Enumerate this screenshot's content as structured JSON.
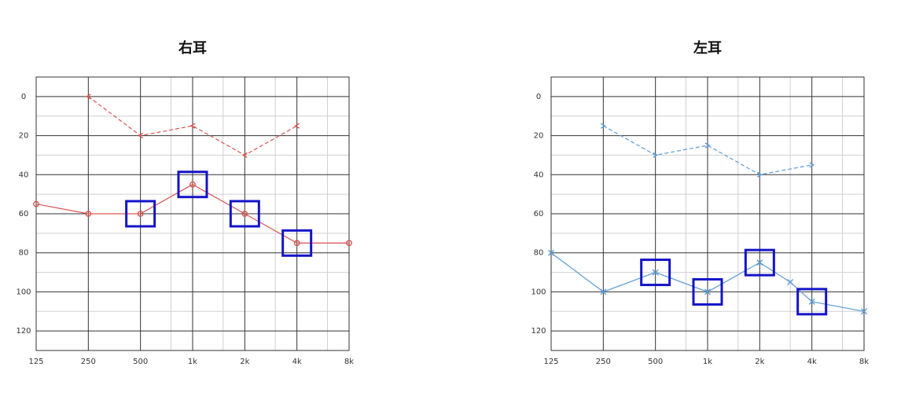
{
  "chart_data": [
    {
      "type": "line",
      "title": "右耳",
      "xscale": "log",
      "xlim": [
        125,
        8000
      ],
      "ylim": [
        -10,
        130
      ],
      "y_inverted": true,
      "grid": true,
      "xticks": [
        125,
        250,
        500,
        {
          "value": 1000,
          "label": "1k"
        },
        {
          "value": 2000,
          "label": "2k"
        },
        {
          "value": 4000,
          "label": "4k"
        },
        {
          "value": 8000,
          "label": "8k"
        }
      ],
      "xminor_ticks": [
        750,
        1500,
        3000,
        6000
      ],
      "yticks": [
        0,
        20,
        40,
        60,
        80,
        100,
        120
      ],
      "yminor_ticks": [
        10,
        30,
        50,
        70,
        90,
        110
      ],
      "series": [
        {
          "color": "#d9534f",
          "dash": false,
          "marker": "o",
          "x": [
            125,
            250,
            500,
            1000,
            2000,
            4000,
            8000
          ],
          "values": [
            55,
            60,
            60,
            45,
            60,
            75,
            75
          ]
        },
        {
          "color": "#d9534f",
          "dash": true,
          "marker": "<",
          "x": [
            250,
            500,
            1000,
            2000,
            4000
          ],
          "values": [
            0,
            20,
            15,
            30,
            15
          ]
        }
      ],
      "highlights": [
        500,
        1000,
        2000,
        4000
      ],
      "highlight_color": "#1414c8"
    },
    {
      "type": "line",
      "title": "左耳",
      "xscale": "log",
      "xlim": [
        125,
        8000
      ],
      "ylim": [
        -10,
        130
      ],
      "y_inverted": true,
      "grid": true,
      "xticks": [
        125,
        250,
        500,
        {
          "value": 1000,
          "label": "1k"
        },
        {
          "value": 2000,
          "label": "2k"
        },
        {
          "value": 4000,
          "label": "4k"
        },
        {
          "value": 8000,
          "label": "8k"
        }
      ],
      "xminor_ticks": [
        750,
        1500,
        3000,
        6000
      ],
      "yticks": [
        0,
        20,
        40,
        60,
        80,
        100,
        120
      ],
      "yminor_ticks": [
        10,
        30,
        50,
        70,
        90,
        110
      ],
      "series": [
        {
          "color": "#5b9bd5",
          "dash": false,
          "marker": "x",
          "x": [
            125,
            250,
            500,
            1000,
            2000,
            3000,
            4000,
            8000
          ],
          "values": [
            80,
            100,
            90,
            100,
            85,
            95,
            105,
            110
          ]
        },
        {
          "color": "#5b9bd5",
          "dash": true,
          "marker": ">",
          "x": [
            250,
            500,
            1000,
            2000,
            4000
          ],
          "values": [
            15,
            30,
            25,
            40,
            35
          ]
        }
      ],
      "highlights": [
        500,
        1000,
        2000,
        4000
      ],
      "highlight_color": "#1414c8"
    }
  ]
}
